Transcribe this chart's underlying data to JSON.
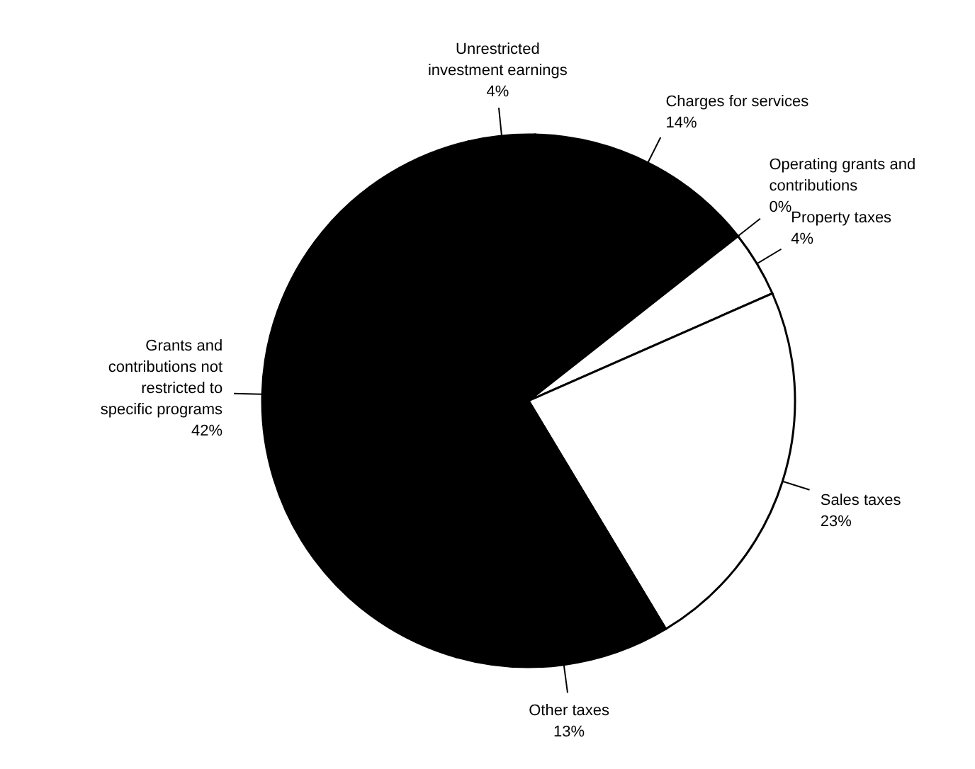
{
  "chart_data": {
    "type": "pie",
    "categories": [
      "Unrestricted investment earnings",
      "Charges for services",
      "Operating grants and contributions",
      "Property taxes",
      "Sales taxes",
      "Other taxes",
      "Grants and contributions not restricted to specific programs"
    ],
    "values": [
      4,
      14,
      0,
      4,
      23,
      13,
      42
    ],
    "value_labels": [
      "4%",
      "14%",
      "0%",
      "4%",
      "23%",
      "13%",
      "42%"
    ],
    "colors": [
      "#000000",
      "#000000",
      "#ffffff",
      "#ffffff",
      "#ffffff",
      "#000000",
      "#000000"
    ]
  }
}
